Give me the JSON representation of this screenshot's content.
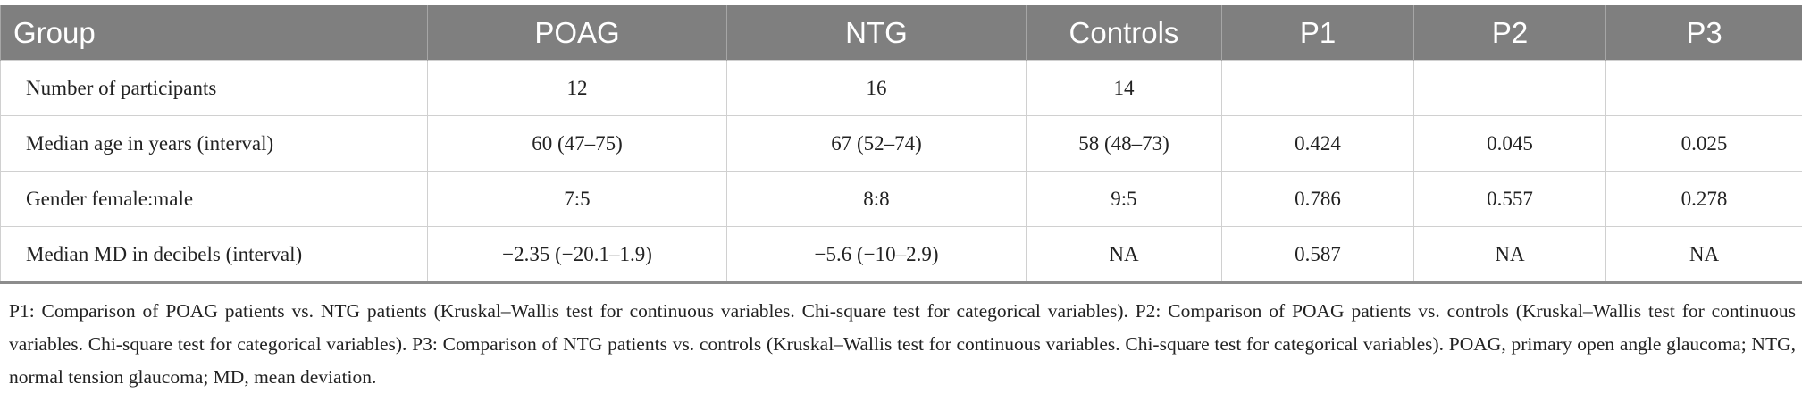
{
  "table": {
    "header": [
      "Group",
      "POAG",
      "NTG",
      "Controls",
      "P1",
      "P2",
      "P3"
    ],
    "rows": [
      [
        "Number of participants",
        "12",
        "16",
        "14"
      ],
      [
        "Median age in years (interval)",
        "60 (47–75)",
        "67 (52–74)",
        "58 (48–73)",
        "0.424",
        "0.045",
        "0.025"
      ],
      [
        "Gender female:male",
        "7:5",
        "8:8",
        "9:5",
        "0.786",
        "0.557",
        "0.278"
      ],
      [
        "Median MD in decibels (interval)",
        "−2.35 (−20.1–1.9)",
        "−5.6 (−10–2.9)",
        "NA",
        "0.587",
        "NA",
        "NA"
      ]
    ],
    "footnote": "P1: Comparison of POAG patients vs. NTG patients (Kruskal–Wallis test for continuous variables. Chi-square test for categorical variables). P2: Comparison of POAG patients vs. controls (Kruskal–Wallis test for continuous variables. Chi-square test for categorical variables). P3: Comparison of NTG patients vs. controls (Kruskal–Wallis test for continuous variables. Chi-square test for categorical variables). POAG, primary open angle glaucoma; NTG, normal tension glaucoma; MD, mean deviation."
  }
}
